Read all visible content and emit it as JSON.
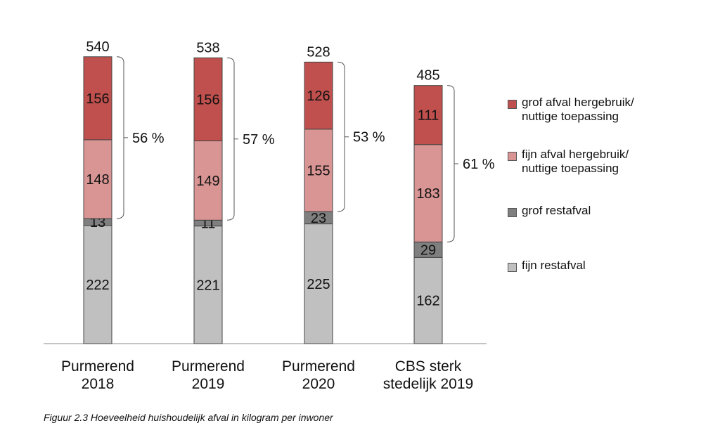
{
  "chart_data": {
    "type": "bar",
    "stacked": true,
    "categories": [
      "Purmerend\n2018",
      "Purmerend\n2019",
      "Purmerend\n2020",
      "CBS sterk\nstedelijk 2019"
    ],
    "series": [
      {
        "name": "fijn restafval",
        "values": [
          222,
          221,
          225,
          162
        ],
        "color": "#c0c0c0"
      },
      {
        "name": "grof restafval",
        "values": [
          13,
          11,
          23,
          29
        ],
        "color": "#7f7f7f"
      },
      {
        "name": "fijn afval hergebruik/\nnuttige toepassing",
        "values": [
          148,
          149,
          155,
          183
        ],
        "color": "#d99594"
      },
      {
        "name": "grof afval hergebruik/\nnuttige toepassing",
        "values": [
          156,
          156,
          126,
          111
        ],
        "color": "#c0504d"
      }
    ],
    "totals": [
      "540",
      "538",
      "528",
      "485"
    ],
    "percent_labels": [
      "56 %",
      "57 %",
      "53 %",
      "61 %"
    ],
    "ylim": [
      0,
      560
    ],
    "grid": false,
    "legend_position": "right"
  },
  "legend_order": [
    3,
    2,
    1,
    0
  ],
  "caption": "Figuur 2.3 Hoeveelheid huishoudelijk afval in kilogram per inwoner"
}
